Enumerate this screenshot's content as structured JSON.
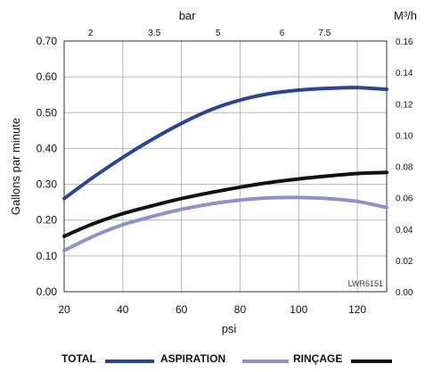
{
  "chart_data": {
    "type": "line",
    "watermark": "LWR6151",
    "x": [
      20,
      30,
      40,
      50,
      60,
      70,
      80,
      90,
      100,
      110,
      120,
      130
    ],
    "xlabel": "psi",
    "xlim": [
      20,
      130
    ],
    "xticks": [
      "20",
      "40",
      "60",
      "80",
      "100",
      "120"
    ],
    "ylabel": "Gallons par minute",
    "ylim": [
      0,
      0.7
    ],
    "yticks": [
      "0.00",
      "0.10",
      "0.20",
      "0.30",
      "0.40",
      "0.50",
      "0.60",
      "0.70"
    ],
    "top_axis": {
      "label": "bar",
      "ticks": [
        {
          "psi": 29,
          "label": "2"
        },
        {
          "psi": 50.8,
          "label": "3.5"
        },
        {
          "psi": 72.5,
          "label": "5"
        },
        {
          "psi": 94.3,
          "label": "6"
        },
        {
          "psi": 108.8,
          "label": "7.5"
        }
      ]
    },
    "right_axis": {
      "label": "M³/h",
      "ylim": [
        0,
        0.16
      ],
      "ticks": [
        "0.00",
        "0.02",
        "0.04",
        "0.06",
        "0.08",
        "0.10",
        "0.12",
        "0.14",
        "0.16"
      ]
    },
    "grid": true,
    "legend_position": "bottom",
    "series": [
      {
        "name": "TOTAL",
        "color": "#2b4594",
        "values": [
          0.26,
          0.32,
          0.375,
          0.425,
          0.47,
          0.508,
          0.535,
          0.553,
          0.563,
          0.568,
          0.57,
          0.565
        ]
      },
      {
        "name": "ASPIRATION",
        "color": "#8c92cc",
        "values": [
          0.115,
          0.155,
          0.187,
          0.21,
          0.23,
          0.245,
          0.256,
          0.262,
          0.263,
          0.26,
          0.252,
          0.235
        ]
      },
      {
        "name": "RINÇAGE",
        "color": "#111111",
        "values": [
          0.155,
          0.19,
          0.218,
          0.24,
          0.26,
          0.277,
          0.292,
          0.305,
          0.315,
          0.323,
          0.33,
          0.333
        ]
      }
    ]
  }
}
